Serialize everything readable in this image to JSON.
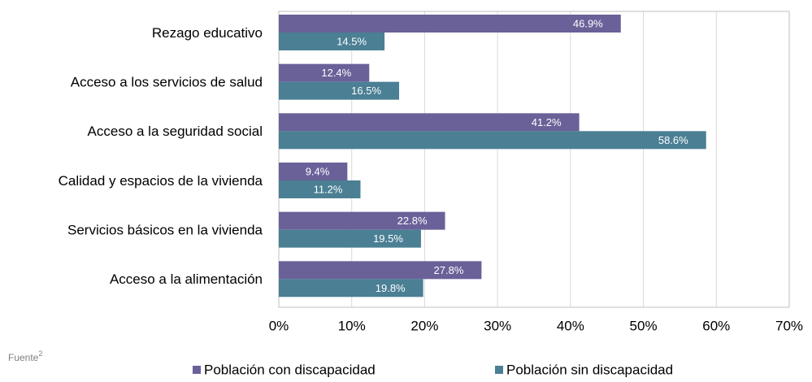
{
  "chart_data": {
    "type": "bar",
    "orientation": "horizontal",
    "categories": [
      "Rezago educativo",
      "Acceso a los servicios de salud",
      "Acceso a la seguridad social",
      "Calidad y espacios de la vivienda",
      "Servicios básicos en la vivienda",
      "Acceso a la alimentación"
    ],
    "series": [
      {
        "name": "Población con discapacidad",
        "color": "#6a6199",
        "values": [
          46.9,
          12.4,
          41.2,
          9.4,
          22.8,
          27.8
        ],
        "value_labels": [
          "46.9%",
          "12.4%",
          "41.2%",
          "9.4%",
          "22.8%",
          "27.8%"
        ]
      },
      {
        "name": "Población sin discapacidad",
        "color": "#4a7f94",
        "values": [
          14.5,
          16.5,
          58.6,
          11.2,
          19.5,
          19.8
        ],
        "value_labels": [
          "14.5%",
          "16.5%",
          "58.6%",
          "11.2%",
          "19.5%",
          "19.8%"
        ]
      }
    ],
    "xlim": [
      0,
      70
    ],
    "xticks": [
      {
        "value": 0,
        "label": "0%"
      },
      {
        "value": 10,
        "label": "10%"
      },
      {
        "value": 20,
        "label": "20%"
      },
      {
        "value": 30,
        "label": "30%"
      },
      {
        "value": 40,
        "label": "40%"
      },
      {
        "value": 50,
        "label": "50%"
      },
      {
        "value": 60,
        "label": "60%"
      },
      {
        "value": 70,
        "label": "70%"
      }
    ],
    "grid": true,
    "legend": "bottom",
    "note": "Fuente",
    "note_sup": "2"
  }
}
